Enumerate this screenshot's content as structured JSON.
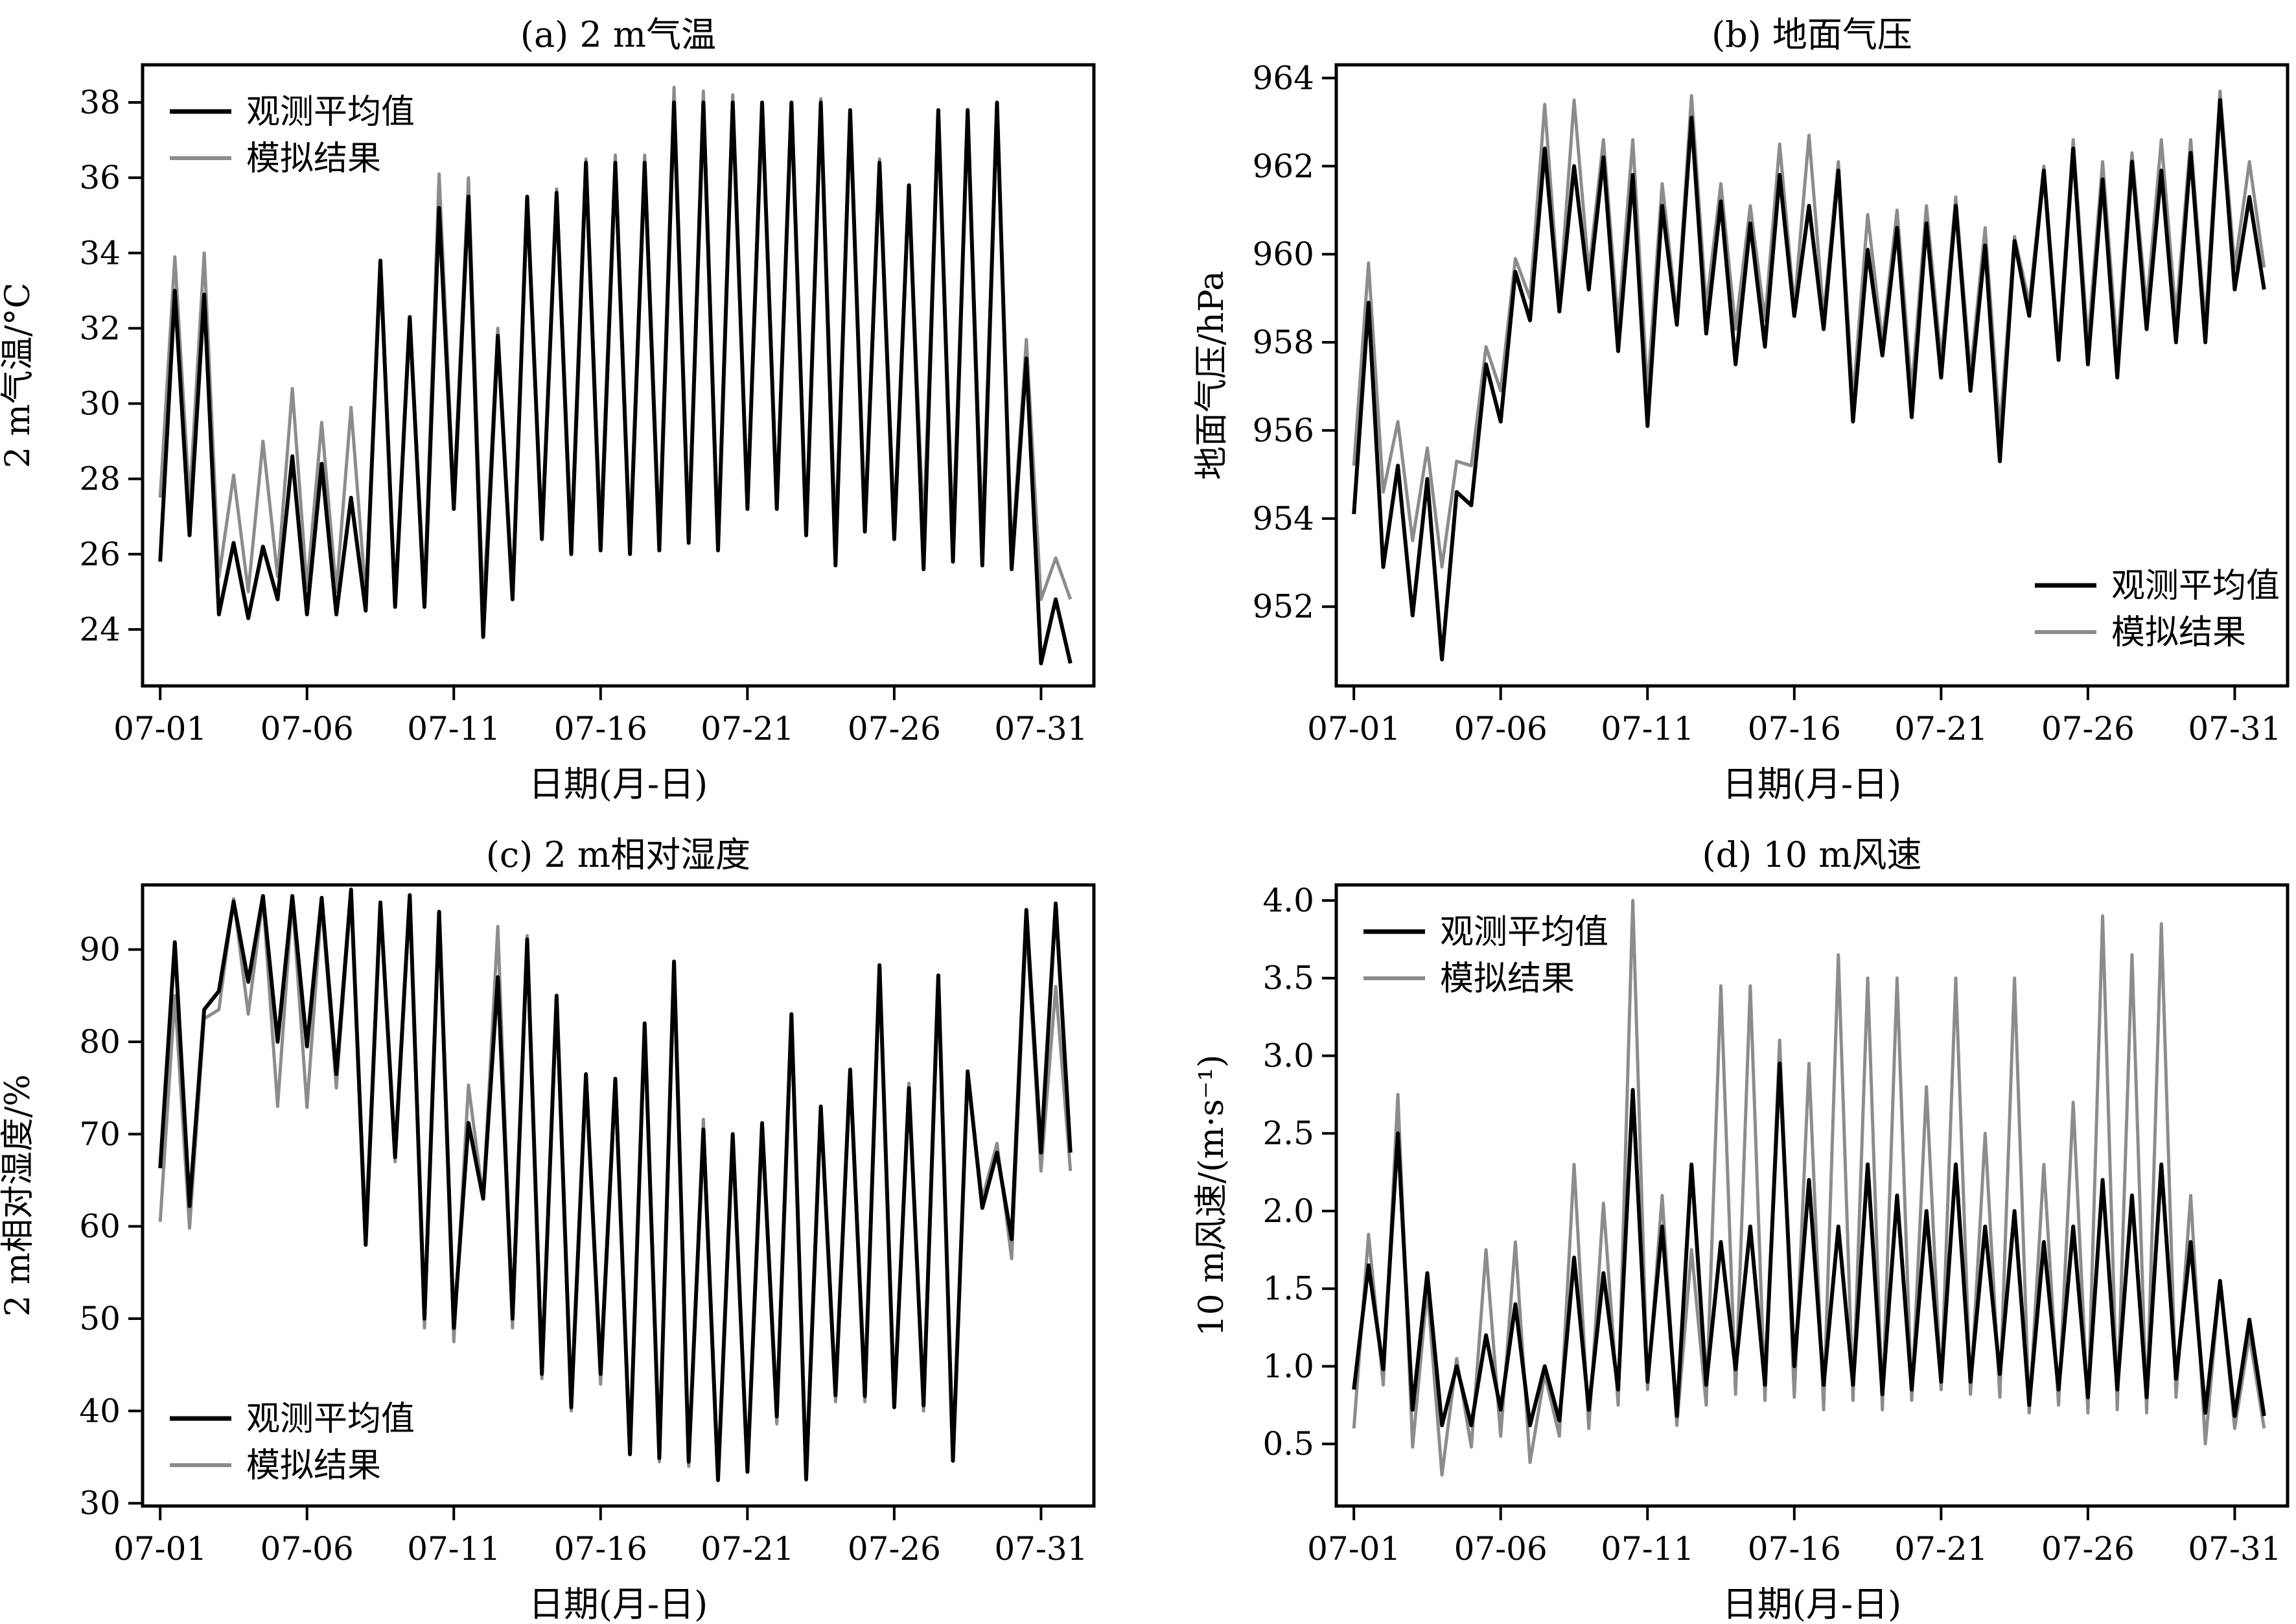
{
  "figure": {
    "xlabel": "日期(月-日)",
    "legend": {
      "observed": "观测平均值",
      "simulated": "模拟结果"
    },
    "colors": {
      "observed": "#000000",
      "simulated": "#8c8c8c"
    }
  },
  "chart_data": [
    {
      "type": "line",
      "title": "(a) 2 m气温",
      "xlabel": "日期(月-日)",
      "ylabel": "2 m气温/°C",
      "x_ticks": [
        "07-01",
        "07-06",
        "07-11",
        "07-16",
        "07-21",
        "07-26",
        "07-31"
      ],
      "x_tick_days": [
        1,
        6,
        11,
        16,
        21,
        26,
        31
      ],
      "xlim": [
        -0.6,
        31.8
      ],
      "ylim": [
        22.5,
        39.0
      ],
      "y_ticks": [
        "24",
        "26",
        "28",
        "30",
        "32",
        "34",
        "36",
        "38"
      ],
      "legend_position": "top-left",
      "grid": false,
      "series": [
        {
          "name": "观测平均值",
          "x_day_start": 0,
          "points_per_day": 2,
          "peaks": [
            33.0,
            32.9,
            26.3,
            26.2,
            28.6,
            28.4,
            27.5,
            33.8,
            32.3,
            35.2,
            35.5,
            31.8,
            35.5,
            35.6,
            36.4,
            36.4,
            36.4,
            38.0,
            38.0,
            38.0,
            38.0,
            38.0,
            38.0,
            37.8,
            36.4,
            35.8,
            37.8,
            37.8,
            38.0,
            31.2,
            24.8
          ],
          "troughs": [
            25.8,
            26.5,
            24.4,
            24.3,
            24.8,
            24.4,
            24.4,
            24.5,
            24.6,
            24.6,
            27.2,
            23.8,
            24.8,
            26.4,
            26.0,
            26.1,
            26.0,
            26.1,
            26.3,
            26.1,
            27.2,
            27.2,
            26.5,
            25.7,
            26.6,
            26.4,
            25.6,
            25.8,
            25.7,
            25.6,
            23.1
          ]
        },
        {
          "name": "模拟结果",
          "x_day_start": 0,
          "points_per_day": 2,
          "peaks": [
            33.9,
            34.0,
            28.1,
            29.0,
            30.4,
            29.5,
            29.9,
            33.5,
            32.0,
            36.1,
            36.0,
            32.0,
            35.5,
            35.7,
            36.5,
            36.6,
            36.6,
            38.4,
            38.3,
            38.2,
            38.0,
            38.0,
            38.1,
            37.8,
            36.5,
            35.7,
            37.7,
            37.7,
            38.0,
            31.7,
            25.9
          ],
          "troughs": [
            27.5,
            27.4,
            25.4,
            25.0,
            25.4,
            25.1,
            25.0,
            24.9,
            24.9,
            25.0,
            27.5,
            24.5,
            25.0,
            26.5,
            26.4,
            26.6,
            26.4,
            26.5,
            26.6,
            26.4,
            27.4,
            27.4,
            26.6,
            26.4,
            26.8,
            26.8,
            26.6,
            26.5,
            26.5,
            25.9,
            24.8
          ]
        }
      ]
    },
    {
      "type": "line",
      "title": "(b) 地面气压",
      "xlabel": "日期(月-日)",
      "ylabel": "地面气压/hPa",
      "x_ticks": [
        "07-01",
        "07-06",
        "07-11",
        "07-16",
        "07-21",
        "07-26",
        "07-31"
      ],
      "x_tick_days": [
        1,
        6,
        11,
        16,
        21,
        26,
        31
      ],
      "xlim": [
        -0.6,
        31.8
      ],
      "ylim": [
        950.2,
        964.3
      ],
      "y_ticks": [
        "952",
        "954",
        "956",
        "958",
        "960",
        "962",
        "964"
      ],
      "legend_position": "bottom-right",
      "grid": false,
      "series": [
        {
          "name": "观测平均值",
          "x_day_start": 0,
          "points_per_day": 2,
          "peaks": [
            958.9,
            955.2,
            954.9,
            954.6,
            957.5,
            959.6,
            962.4,
            962.0,
            962.2,
            961.8,
            961.1,
            963.1,
            961.2,
            960.7,
            961.8,
            961.1,
            961.9,
            960.1,
            960.6,
            960.7,
            961.1,
            960.2,
            960.3,
            961.9,
            962.4,
            961.7,
            962.1,
            961.9,
            962.3,
            963.5,
            961.3
          ],
          "troughs": [
            954.1,
            952.9,
            951.8,
            950.8,
            954.3,
            956.2,
            958.5,
            958.7,
            959.2,
            957.8,
            956.1,
            958.4,
            958.2,
            957.5,
            957.9,
            958.6,
            958.3,
            956.2,
            957.7,
            956.3,
            957.2,
            956.9,
            955.3,
            958.6,
            957.6,
            957.5,
            957.2,
            958.3,
            958.0,
            958.0,
            959.2
          ]
        },
        {
          "name": "模拟结果",
          "x_day_start": 0,
          "points_per_day": 2,
          "peaks": [
            959.8,
            956.2,
            955.6,
            955.3,
            957.9,
            959.9,
            963.4,
            963.5,
            962.6,
            962.6,
            961.6,
            963.6,
            961.6,
            961.1,
            962.5,
            962.7,
            962.1,
            960.9,
            961.0,
            961.1,
            961.3,
            960.6,
            960.4,
            962.0,
            962.6,
            962.1,
            962.3,
            962.6,
            962.6,
            963.7,
            962.1
          ],
          "troughs": [
            955.2,
            954.6,
            953.5,
            952.9,
            955.2,
            956.9,
            959.0,
            958.9,
            959.6,
            958.4,
            956.9,
            958.6,
            958.8,
            958.3,
            958.5,
            958.8,
            958.6,
            956.7,
            958.0,
            956.9,
            957.6,
            957.3,
            956.0,
            958.9,
            957.9,
            958.0,
            957.8,
            958.8,
            958.6,
            958.4,
            959.7
          ]
        }
      ]
    },
    {
      "type": "line",
      "title": "(c) 2 m相对湿度",
      "xlabel": "日期(月-日)",
      "ylabel": "2 m相对湿度/%",
      "x_ticks": [
        "07-01",
        "07-06",
        "07-11",
        "07-16",
        "07-21",
        "07-26",
        "07-31"
      ],
      "x_tick_days": [
        1,
        6,
        11,
        16,
        21,
        26,
        31
      ],
      "xlim": [
        -0.6,
        31.8
      ],
      "ylim": [
        29.7,
        97.0
      ],
      "y_ticks": [
        "30",
        "40",
        "50",
        "60",
        "70",
        "80",
        "90"
      ],
      "legend_position": "bottom-left",
      "grid": false,
      "series": [
        {
          "name": "观测平均值",
          "x_day_start": 0,
          "points_per_day": 2,
          "peaks": [
            90.8,
            83.5,
            95.2,
            95.8,
            95.8,
            95.6,
            96.5,
            95.1,
            95.9,
            94.1,
            71.2,
            87.0,
            91.1,
            85.0,
            76.5,
            76.0,
            82.0,
            88.7,
            70.5,
            70.0,
            71.2,
            83.0,
            73.0,
            77.0,
            88.3,
            75.0,
            87.2,
            76.8,
            68.0,
            94.3,
            95.0
          ],
          "troughs": [
            66.3,
            62.2,
            85.5,
            86.5,
            80.0,
            79.5,
            76.5,
            58.0,
            67.5,
            50.0,
            49.0,
            63.0,
            50.0,
            44.0,
            40.4,
            44.0,
            35.3,
            34.9,
            34.5,
            32.5,
            33.4,
            39.4,
            32.6,
            41.7,
            41.6,
            40.4,
            40.6,
            34.6,
            62.0,
            58.6,
            68.0
          ]
        },
        {
          "name": "模拟结果",
          "x_day_start": 0,
          "points_per_day": 2,
          "peaks": [
            85.0,
            82.5,
            95.5,
            95.5,
            95.5,
            95.0,
            96.0,
            94.7,
            95.5,
            93.5,
            75.3,
            92.5,
            91.5,
            84.5,
            76.5,
            75.5,
            81.5,
            88.0,
            71.6,
            69.8,
            70.5,
            83.0,
            72.7,
            76.3,
            87.5,
            75.5,
            86.0,
            76.0,
            69.0,
            93.0,
            86.0
          ],
          "troughs": [
            60.5,
            59.8,
            83.5,
            83.0,
            73.0,
            72.9,
            75.0,
            60.0,
            67.0,
            49.0,
            47.5,
            63.0,
            49.0,
            43.5,
            40.0,
            42.9,
            35.5,
            34.5,
            34.0,
            33.0,
            34.5,
            38.6,
            32.5,
            41.0,
            41.0,
            40.5,
            40.0,
            35.0,
            63.0,
            56.5,
            66.0
          ]
        }
      ]
    },
    {
      "type": "line",
      "title": "(d) 10 m风速",
      "xlabel": "日期(月-日)",
      "ylabel": "10 m风速/(m·s⁻¹)",
      "x_ticks": [
        "07-01",
        "07-06",
        "07-11",
        "07-16",
        "07-21",
        "07-26",
        "07-31"
      ],
      "x_tick_days": [
        1,
        6,
        11,
        16,
        21,
        26,
        31
      ],
      "xlim": [
        -0.6,
        31.8
      ],
      "ylim": [
        0.1,
        4.1
      ],
      "y_ticks": [
        "0.5",
        "1.0",
        "1.5",
        "2.0",
        "2.5",
        "3.0",
        "3.5",
        "4.0"
      ],
      "legend_position": "top-left",
      "grid": false,
      "series": [
        {
          "name": "观测平均值",
          "x_day_start": 0,
          "points_per_day": 2,
          "peaks": [
            1.65,
            2.5,
            1.6,
            1.0,
            1.2,
            1.4,
            1.0,
            1.7,
            1.6,
            2.78,
            1.9,
            2.3,
            1.8,
            1.9,
            2.95,
            2.2,
            1.9,
            2.3,
            2.1,
            2.0,
            2.3,
            1.9,
            2.0,
            1.8,
            1.9,
            2.2,
            2.1,
            2.3,
            1.8,
            1.55,
            1.3
          ],
          "troughs": [
            0.85,
            0.98,
            0.72,
            0.62,
            0.62,
            0.72,
            0.62,
            0.65,
            0.72,
            0.85,
            0.9,
            0.68,
            0.88,
            0.98,
            0.88,
            1.0,
            0.88,
            0.88,
            0.82,
            0.85,
            0.9,
            0.9,
            0.95,
            0.75,
            0.85,
            0.8,
            0.85,
            0.8,
            0.92,
            0.7,
            0.68
          ]
        },
        {
          "name": "模拟结果",
          "x_day_start": 0,
          "points_per_day": 2,
          "peaks": [
            1.85,
            2.75,
            1.5,
            1.05,
            1.75,
            1.8,
            0.95,
            2.3,
            2.05,
            4.0,
            2.1,
            1.75,
            3.45,
            3.45,
            3.1,
            2.95,
            3.65,
            3.5,
            3.5,
            2.8,
            3.5,
            2.5,
            3.5,
            2.3,
            2.7,
            3.9,
            3.65,
            3.85,
            2.1,
            1.55,
            1.2
          ],
          "troughs": [
            0.6,
            0.88,
            0.48,
            0.3,
            0.48,
            0.55,
            0.38,
            0.55,
            0.6,
            0.75,
            0.85,
            0.62,
            0.75,
            0.82,
            0.78,
            0.8,
            0.72,
            0.78,
            0.72,
            0.78,
            0.85,
            0.82,
            0.8,
            0.7,
            0.75,
            0.7,
            0.72,
            0.7,
            0.8,
            0.5,
            0.6
          ]
        }
      ]
    }
  ]
}
